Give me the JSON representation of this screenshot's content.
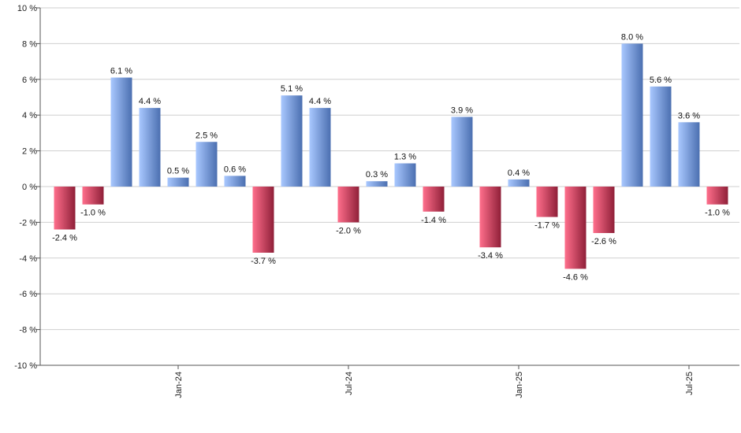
{
  "chart_data": {
    "type": "bar",
    "title": "",
    "xlabel": "",
    "ylabel": "",
    "ylim": [
      -10,
      10
    ],
    "y_ticks": [
      -10,
      -8,
      -6,
      -4,
      -2,
      0,
      2,
      4,
      6,
      8,
      10
    ],
    "y_tick_suffix": " %",
    "grid": true,
    "legend": "none",
    "values": [
      -2.4,
      -1.0,
      6.1,
      4.4,
      0.5,
      2.5,
      0.6,
      -3.7,
      5.1,
      4.4,
      -2.0,
      0.3,
      1.3,
      -1.4,
      3.9,
      -3.4,
      0.4,
      -1.7,
      -4.6,
      -2.6,
      8.0,
      5.6,
      3.6,
      -1.0
    ],
    "value_labels": [
      "-2.4 %",
      "-1.0 %",
      "6.1 %",
      "4.4 %",
      "0.5 %",
      "2.5 %",
      "0.6 %",
      "-3.7 %",
      "5.1 %",
      "4.4 %",
      "-2.0 %",
      "0.3 %",
      "1.3 %",
      "-1.4 %",
      "3.9 %",
      "-3.4 %",
      "0.4 %",
      "-1.7 %",
      "-4.6 %",
      "-2.6 %",
      "8.0 %",
      "5.6 %",
      "3.6 %",
      "-1.0 %"
    ],
    "x_tick_labels": [
      {
        "bar_index": 4,
        "label": "Jan-24"
      },
      {
        "bar_index": 10,
        "label": "Jul-24"
      },
      {
        "bar_index": 16,
        "label": "Jan-25"
      },
      {
        "bar_index": 22,
        "label": "Jul-25"
      }
    ],
    "colors": {
      "positive_light": "#a9c8ff",
      "positive_dark": "#4b6fb0",
      "negative_light": "#ff6f8c",
      "negative_dark": "#8f1f38",
      "grid": "#cfcfcf",
      "axis": "#555555"
    }
  }
}
